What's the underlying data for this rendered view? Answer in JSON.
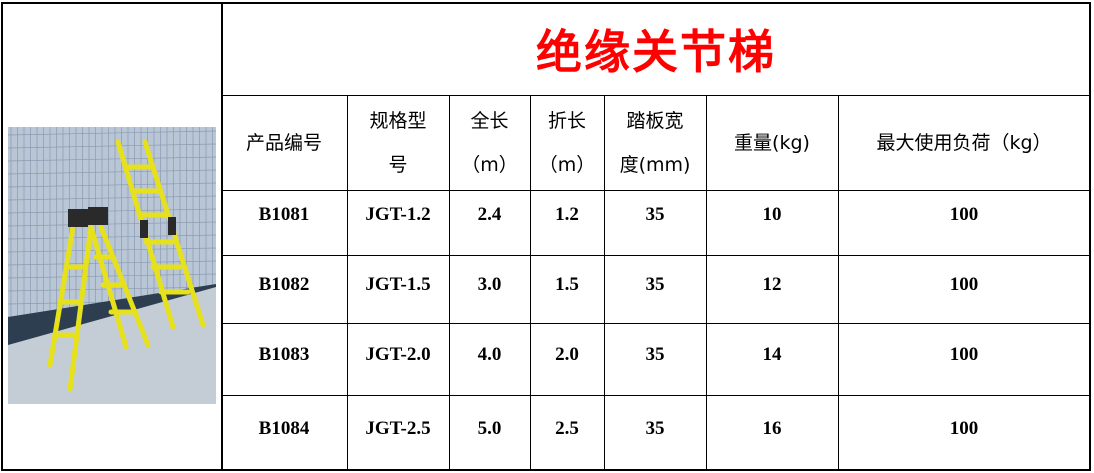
{
  "title": "绝缘关节梯",
  "photo": {
    "alt": "yellow insulated joint ladders",
    "colors": {
      "ladder": "#e6e11a",
      "hinge": "#2a2a2a",
      "wall": "#b9c6d6"
    }
  },
  "title_color": "#ff0000",
  "headers": [
    {
      "line1": "产品编号",
      "line2": ""
    },
    {
      "line1": "规格型",
      "line2": "号"
    },
    {
      "line1": "全长",
      "line2": "（m）"
    },
    {
      "line1": "折长",
      "line2": "（m）"
    },
    {
      "line1": "踏板宽",
      "line2": "度(mm)"
    },
    {
      "line1": "重量(kg)",
      "line2": ""
    },
    {
      "line1": "最大使用负荷（kg）",
      "line2": ""
    }
  ],
  "rows": [
    [
      "B1081",
      "JGT-1.2",
      "2.4",
      "1.2",
      "35",
      "10",
      "100"
    ],
    [
      "B1082",
      "JGT-1.5",
      "3.0",
      "1.5",
      "35",
      "12",
      "100"
    ],
    [
      "B1083",
      "JGT-2.0",
      "4.0",
      "2.0",
      "35",
      "14",
      "100"
    ],
    [
      "B1084",
      "JGT-2.5",
      "5.0",
      "2.5",
      "35",
      "16",
      "100"
    ]
  ]
}
